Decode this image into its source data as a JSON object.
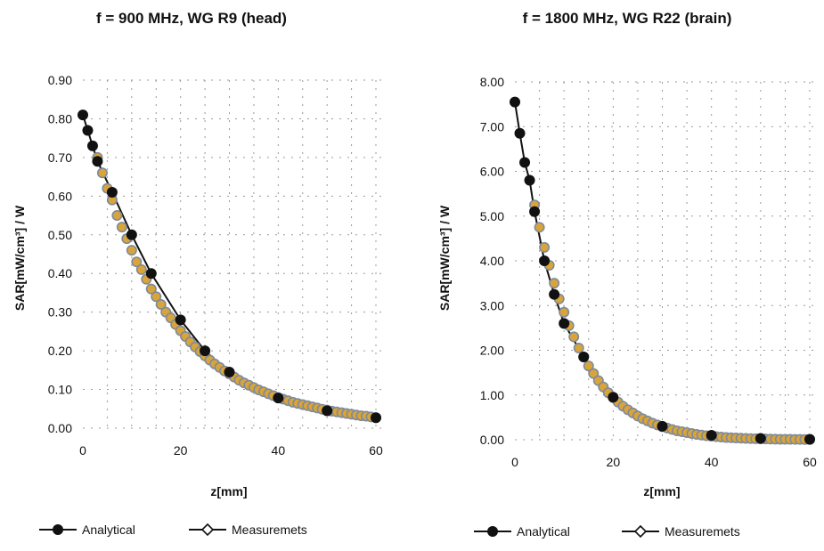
{
  "colors": {
    "analytical": "#111111",
    "measurement_fill": "#d9a43a",
    "measurement_edge": "#7d8a9b",
    "background": "#ffffff"
  },
  "chart_data": [
    {
      "type": "line",
      "title": "f = 900 MHz, WG R9 (head)",
      "xlabel": "z[mm]",
      "ylabel": "SAR[mW/cm³] / W",
      "xlim": [
        0,
        60
      ],
      "ylim": [
        0,
        0.9
      ],
      "xticks": [
        0,
        20,
        40,
        60
      ],
      "xtick_labels": [
        "0",
        "20",
        "40",
        "60"
      ],
      "yticks": [
        0,
        0.1,
        0.2,
        0.3,
        0.4,
        0.5,
        0.6,
        0.7,
        0.8,
        0.9
      ],
      "ytick_labels": [
        "0.00",
        "0.10",
        "0.20",
        "0.30",
        "0.40",
        "0.50",
        "0.60",
        "0.70",
        "0.80",
        "0.90"
      ],
      "grid": true,
      "legend": {
        "position": "bottom",
        "labels": [
          "Analytical",
          "Measuremets"
        ]
      },
      "series": [
        {
          "name": "Analytical",
          "marker": "filled-circle",
          "x": [
            0,
            1,
            2,
            3,
            6,
            10,
            14,
            20,
            25,
            30,
            40,
            50,
            60
          ],
          "y": [
            0.81,
            0.77,
            0.73,
            0.69,
            0.61,
            0.5,
            0.4,
            0.28,
            0.2,
            0.145,
            0.078,
            0.045,
            0.027
          ]
        },
        {
          "name": "Measuremets",
          "marker": "open-diamond",
          "x": [
            3,
            4,
            5,
            6,
            7,
            8,
            9,
            10,
            11,
            12,
            13,
            14,
            15,
            16,
            17,
            18,
            19,
            20,
            21,
            22,
            23,
            24,
            25,
            26,
            27,
            28,
            29,
            30,
            31,
            32,
            33,
            34,
            35,
            36,
            37,
            38,
            39,
            40,
            41,
            42,
            43,
            44,
            45,
            46,
            47,
            48,
            49,
            50,
            51,
            52,
            53,
            54,
            55,
            56,
            57,
            58,
            59,
            60
          ],
          "y": [
            0.7,
            0.66,
            0.62,
            0.59,
            0.55,
            0.52,
            0.49,
            0.46,
            0.43,
            0.41,
            0.385,
            0.36,
            0.34,
            0.32,
            0.3,
            0.285,
            0.268,
            0.252,
            0.237,
            0.223,
            0.21,
            0.198,
            0.187,
            0.176,
            0.166,
            0.157,
            0.148,
            0.14,
            0.132,
            0.124,
            0.117,
            0.111,
            0.105,
            0.099,
            0.094,
            0.089,
            0.084,
            0.079,
            0.075,
            0.071,
            0.067,
            0.064,
            0.061,
            0.058,
            0.055,
            0.052,
            0.049,
            0.047,
            0.044,
            0.042,
            0.04,
            0.038,
            0.036,
            0.034,
            0.032,
            0.031,
            0.029,
            0.027
          ]
        }
      ]
    },
    {
      "type": "line",
      "title": "f = 1800 MHz, WG R22 (brain)",
      "xlabel": "z[mm]",
      "ylabel": "SAR[mW/cm³] / W",
      "xlim": [
        0,
        60
      ],
      "ylim": [
        0,
        8
      ],
      "xticks": [
        0,
        20,
        40,
        60
      ],
      "xtick_labels": [
        "0",
        "20",
        "40",
        "60"
      ],
      "yticks": [
        0,
        1,
        2,
        3,
        4,
        5,
        6,
        7,
        8
      ],
      "ytick_labels": [
        "0.00",
        "1.00",
        "2.00",
        "3.00",
        "4.00",
        "5.00",
        "6.00",
        "7.00",
        "8.00"
      ],
      "grid": true,
      "legend": {
        "position": "bottom",
        "labels": [
          "Analytical",
          "Measuremets"
        ]
      },
      "series": [
        {
          "name": "Analytical",
          "marker": "filled-circle",
          "x": [
            0,
            1,
            2,
            3,
            4,
            6,
            8,
            10,
            14,
            20,
            30,
            40,
            50,
            60
          ],
          "y": [
            7.55,
            6.85,
            6.2,
            5.8,
            5.1,
            4.0,
            3.25,
            2.6,
            1.85,
            0.95,
            0.3,
            0.1,
            0.03,
            0.01
          ]
        },
        {
          "name": "Measuremets",
          "marker": "open-diamond",
          "x": [
            4,
            5,
            6,
            7,
            8,
            9,
            10,
            11,
            12,
            13,
            14,
            15,
            16,
            17,
            18,
            19,
            20,
            21,
            22,
            23,
            24,
            25,
            26,
            27,
            28,
            29,
            30,
            31,
            32,
            33,
            34,
            35,
            36,
            37,
            38,
            39,
            40,
            41,
            42,
            43,
            44,
            45,
            46,
            47,
            48,
            49,
            50,
            51,
            52,
            53,
            54,
            55,
            56,
            57,
            58,
            59,
            60
          ],
          "y": [
            5.25,
            4.75,
            4.3,
            3.9,
            3.5,
            3.15,
            2.85,
            2.55,
            2.3,
            2.05,
            1.85,
            1.65,
            1.48,
            1.32,
            1.18,
            1.05,
            0.94,
            0.84,
            0.75,
            0.67,
            0.6,
            0.53,
            0.47,
            0.42,
            0.37,
            0.33,
            0.29,
            0.26,
            0.23,
            0.2,
            0.18,
            0.16,
            0.14,
            0.12,
            0.105,
            0.09,
            0.08,
            0.07,
            0.06,
            0.05,
            0.045,
            0.04,
            0.035,
            0.03,
            0.026,
            0.022,
            0.02,
            0.017,
            0.015,
            0.013,
            0.011,
            0.01,
            0.009,
            0.008,
            0.007,
            0.006,
            0.005
          ]
        }
      ]
    }
  ]
}
